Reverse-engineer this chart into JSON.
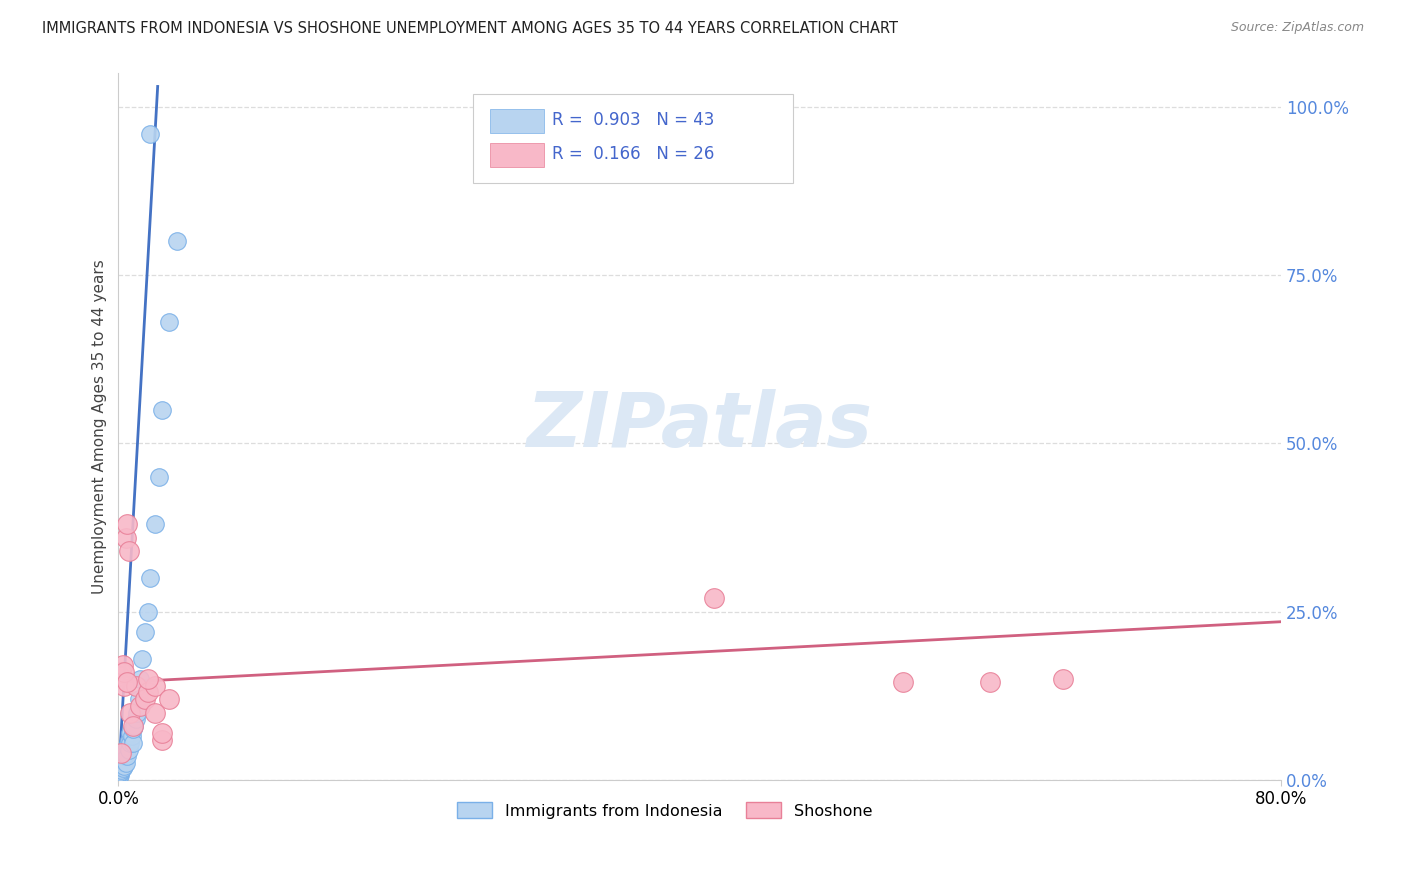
{
  "title": "IMMIGRANTS FROM INDONESIA VS SHOSHONE UNEMPLOYMENT AMONG AGES 35 TO 44 YEARS CORRELATION CHART",
  "source": "Source: ZipAtlas.com",
  "ylabel": "Unemployment Among Ages 35 to 44 years",
  "xlim": [
    0.0,
    0.8
  ],
  "ylim": [
    0.0,
    1.05
  ],
  "yticks": [
    0.0,
    0.25,
    0.5,
    0.75,
    1.0
  ],
  "ytick_labels": [
    "0.0%",
    "25.0%",
    "50.0%",
    "75.0%",
    "100.0%"
  ],
  "xtick_left": "0.0%",
  "xtick_right": "80.0%",
  "r1": "0.903",
  "n1": "43",
  "r2": "0.166",
  "n2": "26",
  "color_blue_fill": "#b8d4f0",
  "color_blue_edge": "#7ab0e8",
  "color_pink_fill": "#f8b8c8",
  "color_pink_edge": "#e88098",
  "color_line_blue": "#4472c4",
  "color_line_pink": "#d06080",
  "watermark_color": "#dce8f5",
  "background": "#ffffff",
  "grid_color": "#dddddd",
  "indonesia_x": [
    0.0005,
    0.0008,
    0.001,
    0.001,
    0.0012,
    0.0015,
    0.0015,
    0.002,
    0.002,
    0.0025,
    0.003,
    0.003,
    0.003,
    0.004,
    0.004,
    0.004,
    0.005,
    0.005,
    0.005,
    0.006,
    0.006,
    0.007,
    0.007,
    0.008,
    0.008,
    0.009,
    0.01,
    0.01,
    0.011,
    0.012,
    0.013,
    0.014,
    0.015,
    0.016,
    0.018,
    0.02,
    0.022,
    0.025,
    0.028,
    0.03,
    0.035,
    0.04,
    0.022
  ],
  "indonesia_y": [
    0.005,
    0.008,
    0.01,
    0.015,
    0.012,
    0.018,
    0.02,
    0.015,
    0.022,
    0.02,
    0.018,
    0.025,
    0.03,
    0.02,
    0.035,
    0.04,
    0.025,
    0.038,
    0.045,
    0.035,
    0.05,
    0.045,
    0.06,
    0.055,
    0.07,
    0.065,
    0.055,
    0.075,
    0.08,
    0.09,
    0.1,
    0.12,
    0.15,
    0.18,
    0.22,
    0.25,
    0.3,
    0.38,
    0.45,
    0.55,
    0.68,
    0.8,
    0.96
  ],
  "shoshone_x": [
    0.001,
    0.002,
    0.003,
    0.004,
    0.005,
    0.006,
    0.007,
    0.008,
    0.01,
    0.012,
    0.015,
    0.018,
    0.02,
    0.025,
    0.03,
    0.002,
    0.004,
    0.006,
    0.02,
    0.025,
    0.03,
    0.035,
    0.41,
    0.54,
    0.6,
    0.65
  ],
  "shoshone_y": [
    0.155,
    0.16,
    0.17,
    0.14,
    0.36,
    0.38,
    0.34,
    0.1,
    0.08,
    0.14,
    0.11,
    0.12,
    0.13,
    0.14,
    0.06,
    0.04,
    0.16,
    0.145,
    0.15,
    0.1,
    0.07,
    0.12,
    0.27,
    0.145,
    0.145,
    0.15
  ],
  "blue_trend_x": [
    0.0,
    0.027
  ],
  "blue_trend_y": [
    0.0,
    1.03
  ],
  "pink_trend_x": [
    0.0,
    0.8
  ],
  "pink_trend_y": [
    0.145,
    0.235
  ]
}
